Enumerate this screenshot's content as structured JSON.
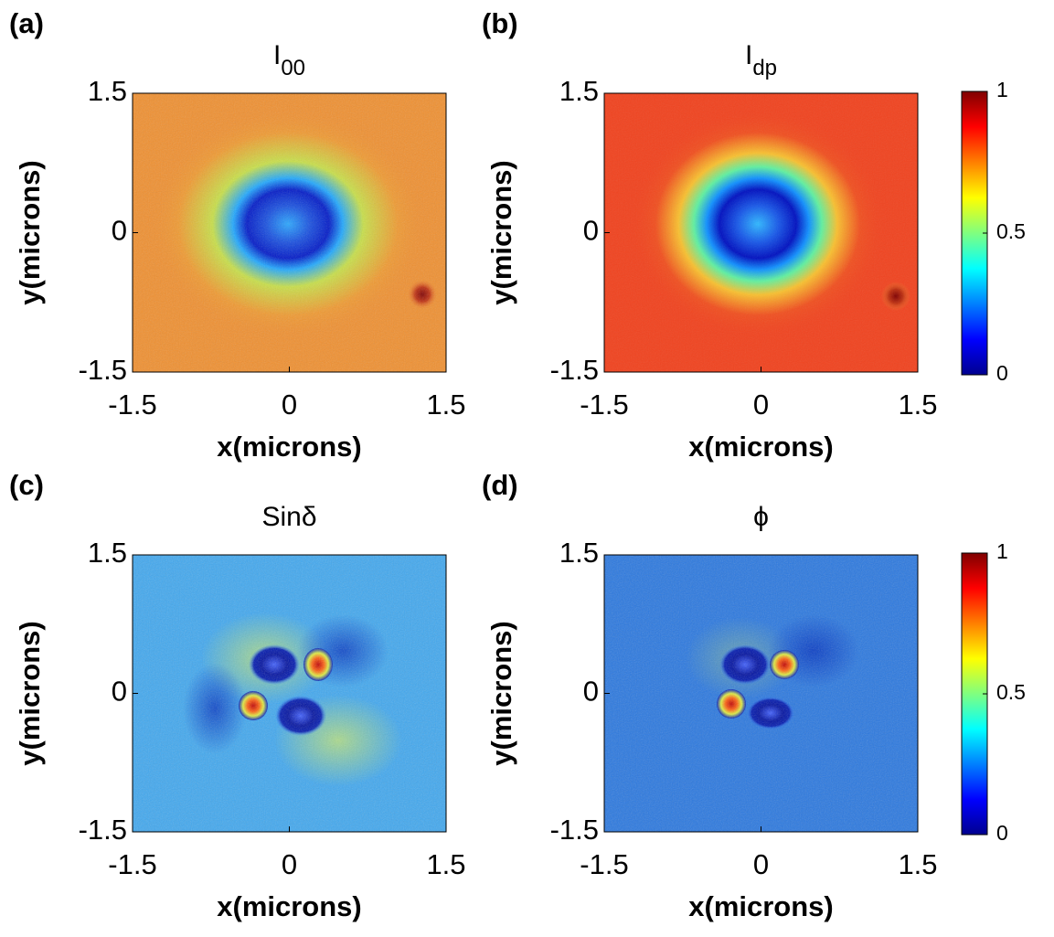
{
  "chart_data": [
    {
      "type": "heatmap",
      "panel_label": "(a)",
      "title": "I",
      "title_subscript": "00",
      "xlabel": "x(microns)",
      "ylabel": "y(microns)",
      "xlim": [
        -1.5,
        1.5
      ],
      "ylim": [
        -1.5,
        1.5
      ],
      "xticks": [
        -1.5,
        0,
        1.5
      ],
      "yticks": [
        -1.5,
        0,
        1.5
      ]
    },
    {
      "type": "heatmap",
      "panel_label": "(b)",
      "title": "I",
      "title_subscript": "dp",
      "xlabel": "x(microns)",
      "ylabel": "y(microns)",
      "xlim": [
        -1.5,
        1.5
      ],
      "ylim": [
        -1.5,
        1.5
      ],
      "xticks": [
        -1.5,
        0,
        1.5
      ],
      "yticks": [
        -1.5,
        0,
        1.5
      ],
      "colorbar": {
        "lim": [
          0,
          1
        ],
        "ticks": [
          0,
          0.5,
          1
        ]
      }
    },
    {
      "type": "heatmap",
      "panel_label": "(c)",
      "title": "Sinδ",
      "xlabel": "x(microns)",
      "ylabel": "y(microns)",
      "xlim": [
        -1.5,
        1.5
      ],
      "ylim": [
        -1.5,
        1.5
      ],
      "xticks": [
        -1.5,
        0,
        1.5
      ],
      "yticks": [
        -1.5,
        0,
        1.5
      ]
    },
    {
      "type": "heatmap",
      "panel_label": "(d)",
      "title": "ϕ",
      "xlabel": "x(microns)",
      "ylabel": "y(microns)",
      "xlim": [
        -1.5,
        1.5
      ],
      "ylim": [
        -1.5,
        1.5
      ],
      "xticks": [
        -1.5,
        0,
        1.5
      ],
      "yticks": [
        -1.5,
        0,
        1.5
      ],
      "colorbar": {
        "lim": [
          0,
          1
        ],
        "ticks": [
          0,
          0.5,
          1
        ]
      }
    }
  ]
}
